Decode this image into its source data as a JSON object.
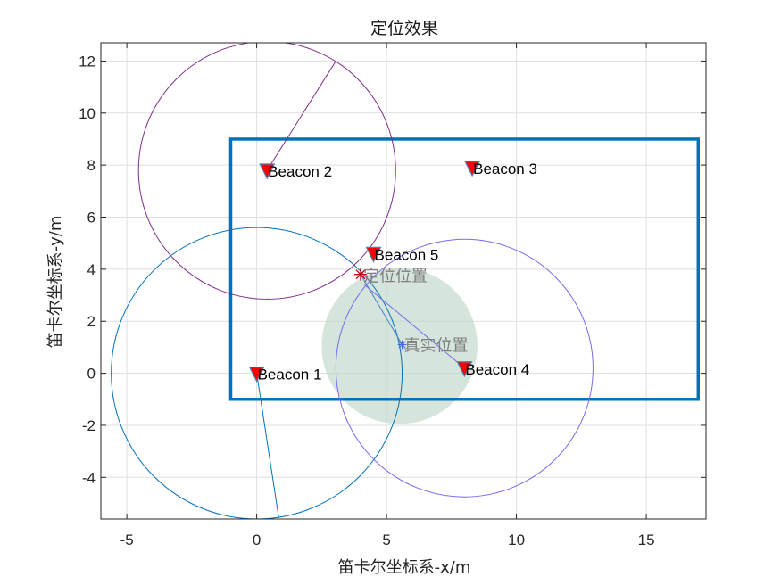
{
  "chart_data": {
    "type": "scatter",
    "title": "定位效果",
    "xlabel": "笛卡尔坐标系-x/m",
    "ylabel": "笛卡尔坐标系-y/m",
    "xlim": [
      -6,
      17.3
    ],
    "ylim": [
      -5.6,
      12.7
    ],
    "xticks": [
      -5,
      0,
      5,
      10,
      15
    ],
    "yticks": [
      -4,
      -2,
      0,
      2,
      4,
      6,
      8,
      10,
      12
    ],
    "grid": true,
    "room": {
      "x": [
        -1,
        17
      ],
      "y": [
        -1,
        9
      ],
      "color": "#0072BD"
    },
    "beacons": [
      {
        "name": "Beacon 1",
        "x": 0,
        "y": 0
      },
      {
        "name": "Beacon 2",
        "x": 0.4,
        "y": 7.8
      },
      {
        "name": "Beacon 3",
        "x": 8.3,
        "y": 7.9
      },
      {
        "name": "Beacon 4",
        "x": 8.0,
        "y": 0.2
      },
      {
        "name": "Beacon 5",
        "x": 4.5,
        "y": 4.6
      }
    ],
    "range_circles": [
      {
        "beacon": "Beacon 1",
        "cx": 0,
        "cy": 0,
        "r": 5.6,
        "color": "#0072BD",
        "radius_end": [
          0.85,
          -5.55
        ]
      },
      {
        "beacon": "Beacon 2",
        "cx": 0.4,
        "cy": 7.8,
        "r": 4.95,
        "color": "#7E2F8E",
        "radius_end": [
          3.05,
          12.0
        ]
      },
      {
        "beacon": "Beacon 4",
        "cx": 8.0,
        "cy": 0.2,
        "r": 4.95,
        "color": "#7B68EE",
        "radius_end": [
          4.15,
          3.4
        ]
      }
    ],
    "uncertainty_area": {
      "cx": 5.5,
      "cy": 1.05,
      "r": 3.0,
      "color": "#B9D3C3"
    },
    "estimated_position": {
      "label": "定位位置",
      "x": 4.0,
      "y": 3.8,
      "color": "#C00000"
    },
    "true_position": {
      "label": "真实位置",
      "x": 5.6,
      "y": 1.1,
      "color": "#4169E1"
    }
  },
  "colors": {
    "marker_fill": "#FF0000",
    "marker_edge": "#4682B4",
    "grid": "#DFDFDF",
    "axis": "#262626",
    "label_gray": "#7F7F7F"
  }
}
